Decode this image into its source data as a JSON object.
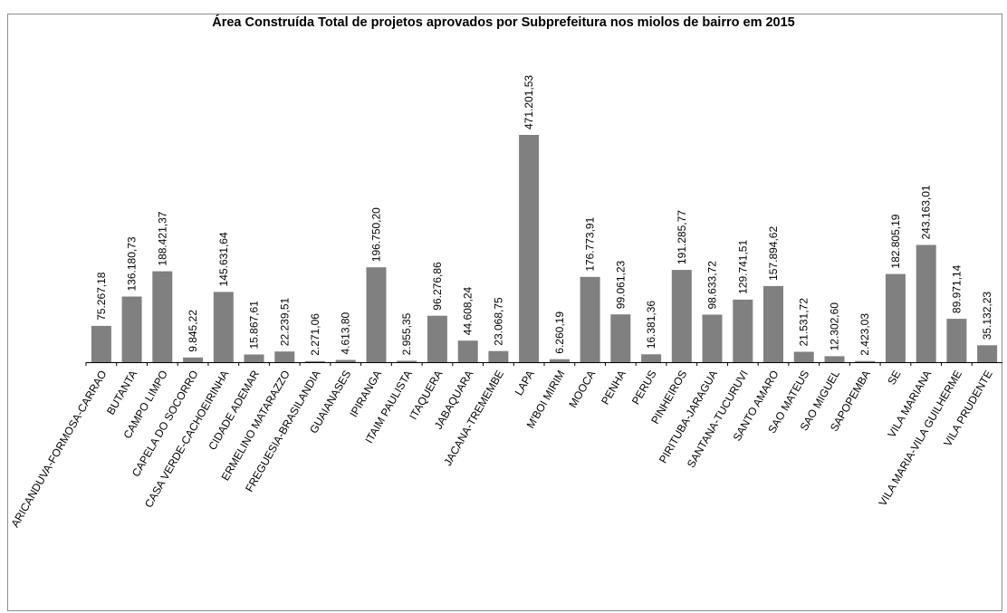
{
  "chart_data": {
    "type": "bar",
    "title": "Área Construída Total de projetos aprovados por Subprefeitura nos miolos de bairro em 2015",
    "xlabel": "",
    "ylabel": "",
    "ylim": [
      0,
      500000
    ],
    "grid": false,
    "legend": "none",
    "bar_color": "#808080",
    "categories": [
      "ARICANDUVA-FORMOSA-CARRAO",
      "BUTANTA",
      "CAMPO LIMPO",
      "CAPELA DO SOCORRO",
      "CASA VERDE-CACHOEIRINHA",
      "CIDADE ADEMAR",
      "ERMELINO MATARAZZO",
      "FREGUESIA-BRASILANDIA",
      "GUAIANASES",
      "IPIRANGA",
      "ITAIM PAULISTA",
      "ITAQUERA",
      "JABAQUARA",
      "JACANA-TREMEMBE",
      "LAPA",
      "M'BOI MIRIM",
      "MOOCA",
      "PENHA",
      "PERUS",
      "PINHEIROS",
      "PIRITUBA-JARAGUA",
      "SANTANA-TUCURUVI",
      "SANTO AMARO",
      "SAO MATEUS",
      "SAO MIGUEL",
      "SAPOPEMBA",
      "SE",
      "VILA MARIANA",
      "VILA MARIA-VILA GUILHERME",
      "VILA PRUDENTE"
    ],
    "values": [
      75267.18,
      136180.73,
      188421.37,
      9845.22,
      145631.64,
      15867.61,
      22239.51,
      2271.06,
      4613.8,
      196750.2,
      2955.35,
      96276.86,
      44608.24,
      23068.75,
      471201.53,
      6260.19,
      176773.91,
      99061.23,
      16381.36,
      191285.77,
      98633.72,
      129741.51,
      157894.62,
      21531.72,
      12302.6,
      2423.03,
      182805.19,
      243163.01,
      89971.14,
      35132.23
    ],
    "value_labels": [
      "75.267,18",
      "136.180,73",
      "188.421,37",
      "9.845,22",
      "145.631,64",
      "15.867,61",
      "22.239,51",
      "2.271,06",
      "4.613,80",
      "196.750,20",
      "2.955,35",
      "96.276,86",
      "44.608,24",
      "23.068,75",
      "471.201,53",
      "6.260,19",
      "176.773,91",
      "99.061,23",
      "16.381,36",
      "191.285,77",
      "98.633,72",
      "129.741,51",
      "157.894,62",
      "21.531,72",
      "12.302,60",
      "2.423,03",
      "182.805,19",
      "243.163,01",
      "89.971,14",
      "35.132,23"
    ]
  }
}
